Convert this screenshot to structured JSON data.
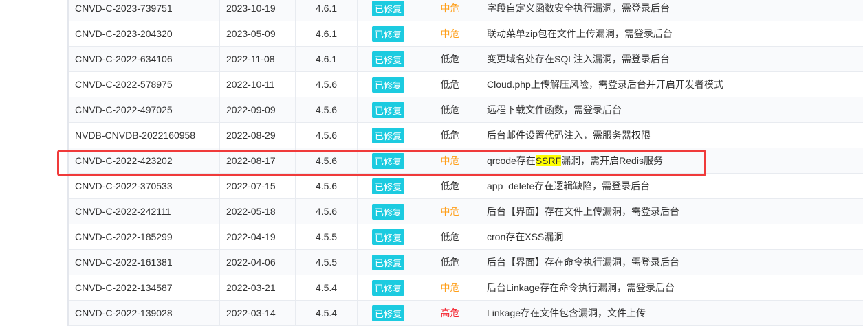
{
  "rows": [
    {
      "id": "CNVD-C-2023-739751",
      "date": "2023-10-19",
      "version": "4.6.1",
      "status": "已修复",
      "level": "中危",
      "level_color": "#ff9f1a",
      "desc": "字段自定义函数安全执行漏洞，需登录后台"
    },
    {
      "id": "CNVD-C-2023-204320",
      "date": "2023-05-09",
      "version": "4.6.1",
      "status": "已修复",
      "level": "中危",
      "level_color": "#ff9f1a",
      "desc": "联动菜单zip包在文件上传漏洞，需登录后台"
    },
    {
      "id": "CNVD-C-2022-634106",
      "date": "2022-11-08",
      "version": "4.6.1",
      "status": "已修复",
      "level": "低危",
      "level_color": "#333333",
      "desc": "变更域名处存在SQL注入漏洞，需登录后台"
    },
    {
      "id": "CNVD-C-2022-578975",
      "date": "2022-10-11",
      "version": "4.5.6",
      "status": "已修复",
      "level": "低危",
      "level_color": "#333333",
      "desc": "Cloud.php上传解压风险，需登录后台并开启开发者模式"
    },
    {
      "id": "CNVD-C-2022-497025",
      "date": "2022-09-09",
      "version": "4.5.6",
      "status": "已修复",
      "level": "低危",
      "level_color": "#333333",
      "desc": "远程下载文件函数，需登录后台"
    },
    {
      "id": "NVDB-CNVDB-2022160958",
      "date": "2022-08-29",
      "version": "4.5.6",
      "status": "已修复",
      "level": "低危",
      "level_color": "#333333",
      "desc": "后台邮件设置代码注入，需服务器权限"
    },
    {
      "id": "CNVD-C-2022-423202",
      "date": "2022-08-17",
      "version": "4.5.6",
      "status": "已修复",
      "level": "中危",
      "level_color": "#ff9f1a",
      "desc_pre": "qrcode存在",
      "desc_hl": "SSRF",
      "desc_post": "漏洞，需开启Redis服务"
    },
    {
      "id": "CNVD-C-2022-370533",
      "date": "2022-07-15",
      "version": "4.5.6",
      "status": "已修复",
      "level": "低危",
      "level_color": "#333333",
      "desc": "app_delete存在逻辑缺陷，需登录后台"
    },
    {
      "id": "CNVD-C-2022-242111",
      "date": "2022-05-18",
      "version": "4.5.6",
      "status": "已修复",
      "level": "中危",
      "level_color": "#ff9f1a",
      "desc": "后台【界面】存在文件上传漏洞，需登录后台"
    },
    {
      "id": "CNVD-C-2022-185299",
      "date": "2022-04-19",
      "version": "4.5.5",
      "status": "已修复",
      "level": "低危",
      "level_color": "#333333",
      "desc": "cron存在XSS漏洞"
    },
    {
      "id": "CNVD-C-2022-161381",
      "date": "2022-04-06",
      "version": "4.5.5",
      "status": "已修复",
      "level": "低危",
      "level_color": "#333333",
      "desc": "后台【界面】存在命令执行漏洞，需登录后台"
    },
    {
      "id": "CNVD-C-2022-134587",
      "date": "2022-03-21",
      "version": "4.5.4",
      "status": "已修复",
      "level": "中危",
      "level_color": "#ff9f1a",
      "desc": "后台Linkage存在命令执行漏洞，需登录后台"
    },
    {
      "id": "CNVD-C-2022-139028",
      "date": "2022-03-14",
      "version": "4.5.4",
      "status": "已修复",
      "level": "高危",
      "level_color": "#f5222d",
      "desc": "Linkage存在文件包含漏洞，文件上传"
    }
  ],
  "colors": {
    "badge": "#1ccbe0",
    "highlight_box": "#f03a3a"
  }
}
